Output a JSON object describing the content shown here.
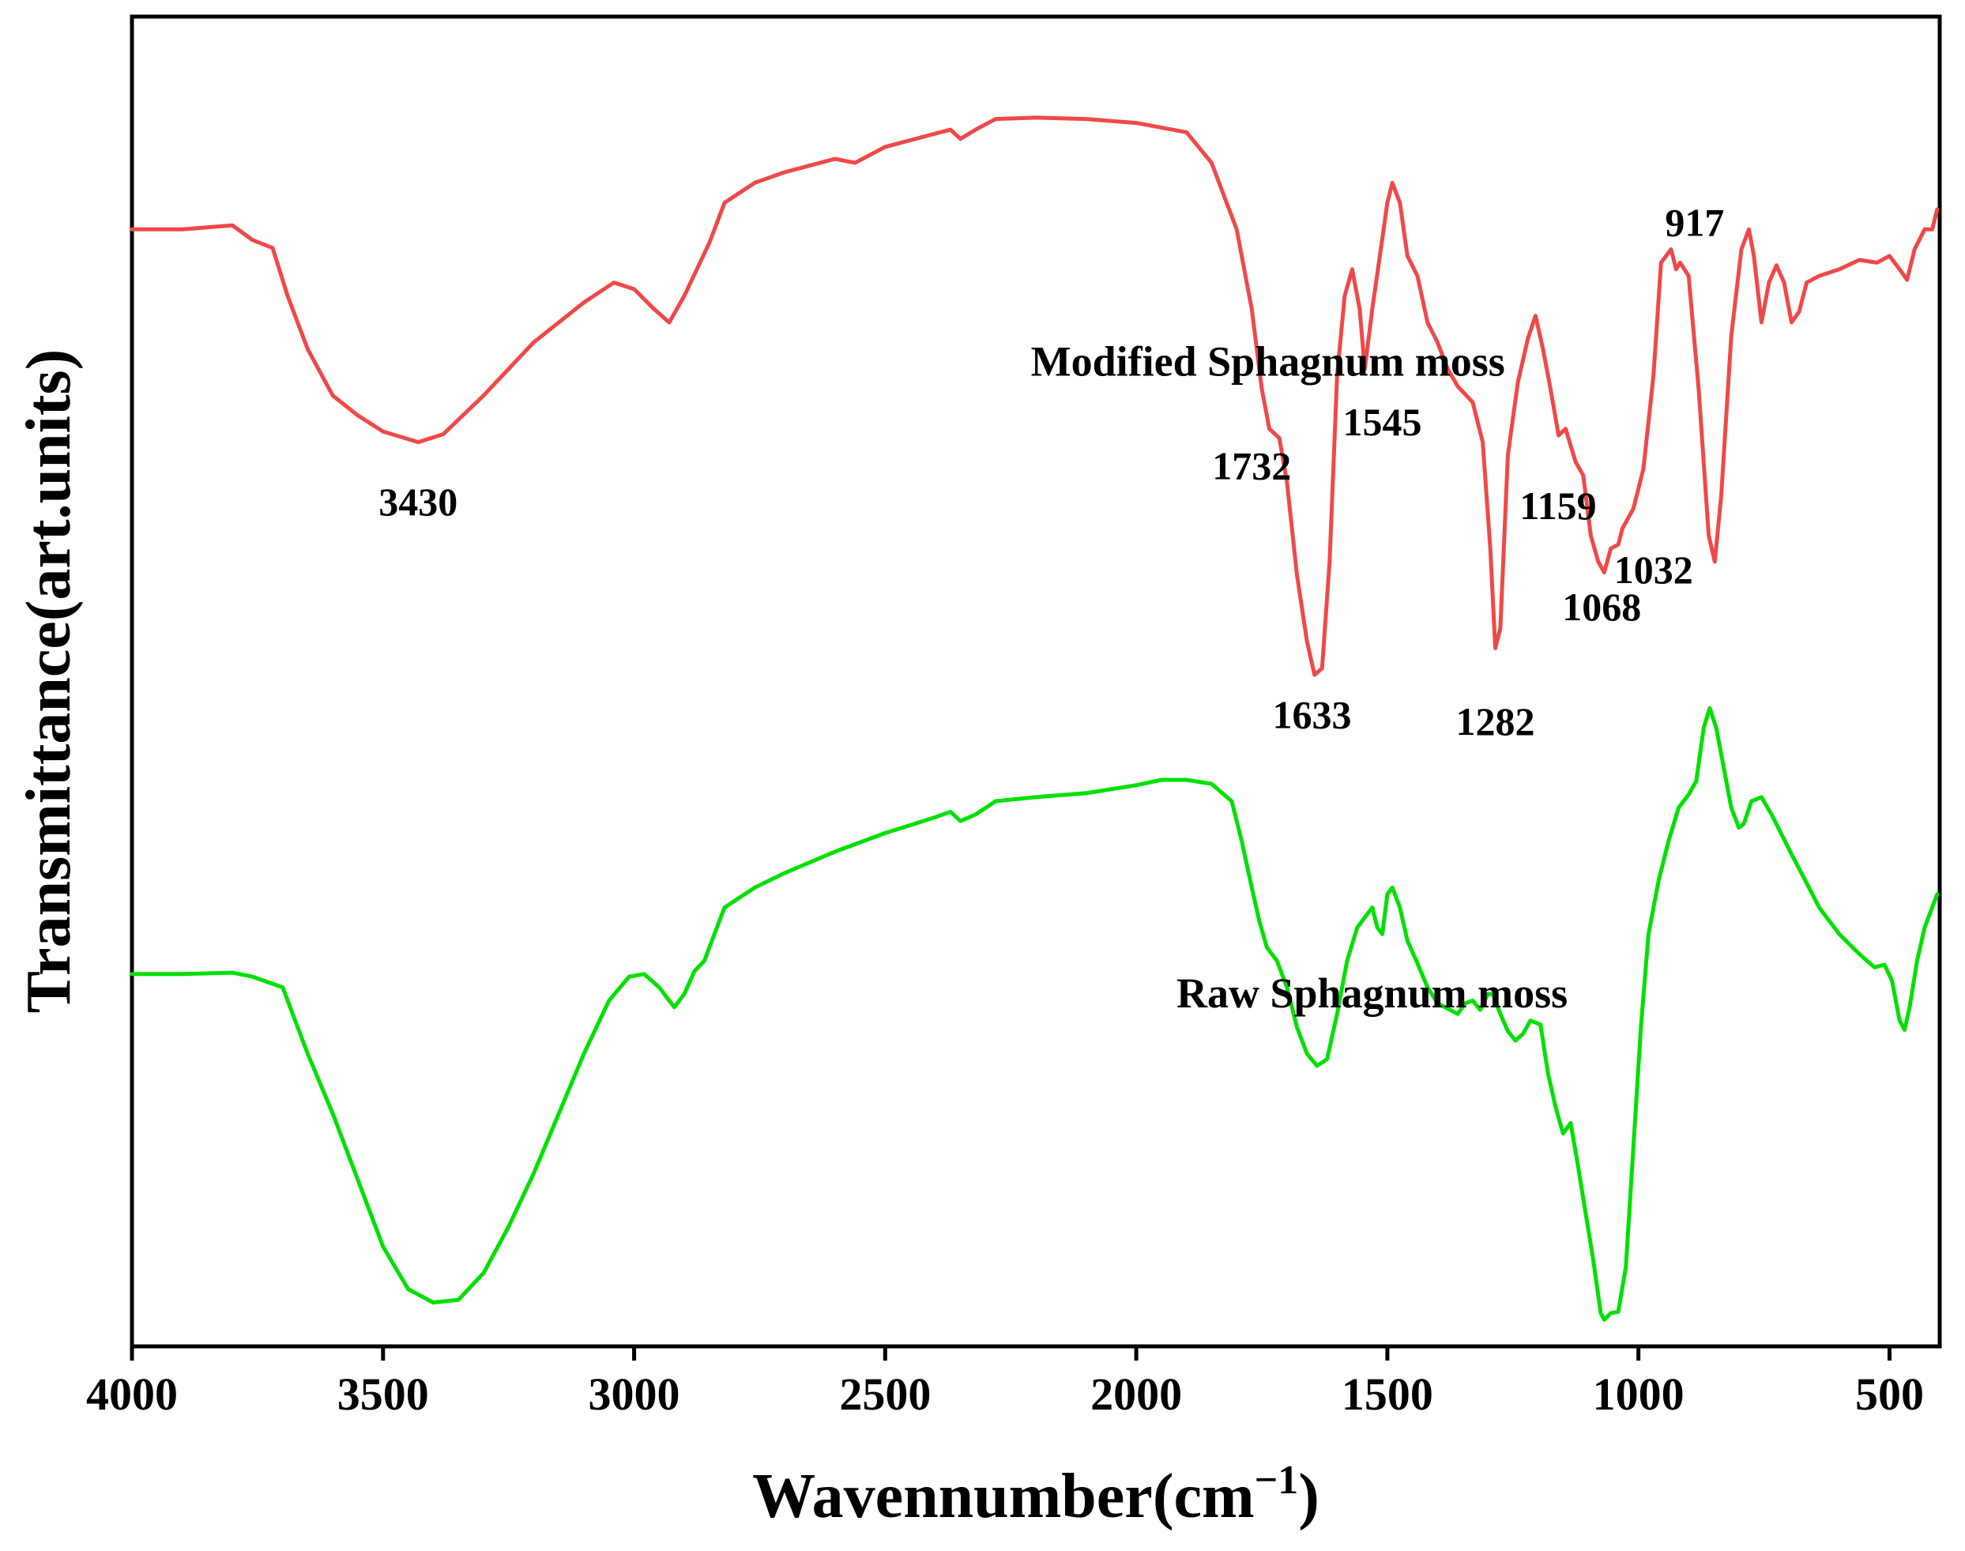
{
  "chart_data": {
    "type": "line",
    "xlabel": "Wavennumber(cm",
    "xlabel_sup": "−1",
    "xlabel_close": ")",
    "ylabel": "Transmittance(art.units)",
    "xlim": [
      4000,
      400
    ],
    "x_reversed": true,
    "x_ticks": [
      4000,
      3500,
      3000,
      2500,
      2000,
      1500,
      1000,
      500
    ],
    "y_ticks": [],
    "ylim": [
      0,
      100
    ],
    "grid": false,
    "legend": "none",
    "series": [
      {
        "name": "Modified Sphagnum moss",
        "color": "#f04848",
        "label_at": [
          2210,
          73
        ],
        "points": [
          [
            4000,
            84
          ],
          [
            3900,
            84
          ],
          [
            3800,
            84.3
          ],
          [
            3760,
            83.2
          ],
          [
            3720,
            82.6
          ],
          [
            3690,
            79
          ],
          [
            3650,
            75
          ],
          [
            3600,
            71.5
          ],
          [
            3550,
            70
          ],
          [
            3500,
            68.8
          ],
          [
            3430,
            68
          ],
          [
            3380,
            68.6
          ],
          [
            3300,
            71.5
          ],
          [
            3200,
            75.5
          ],
          [
            3100,
            78.5
          ],
          [
            3040,
            80
          ],
          [
            3000,
            79.5
          ],
          [
            2960,
            78
          ],
          [
            2930,
            77
          ],
          [
            2900,
            79
          ],
          [
            2850,
            83
          ],
          [
            2820,
            86
          ],
          [
            2760,
            87.5
          ],
          [
            2700,
            88.3
          ],
          [
            2600,
            89.3
          ],
          [
            2560,
            89
          ],
          [
            2500,
            90.2
          ],
          [
            2400,
            91.2
          ],
          [
            2370,
            91.5
          ],
          [
            2350,
            90.8
          ],
          [
            2320,
            91.5
          ],
          [
            2280,
            92.3
          ],
          [
            2200,
            92.4
          ],
          [
            2100,
            92.3
          ],
          [
            2000,
            92
          ],
          [
            1900,
            91.3
          ],
          [
            1850,
            89
          ],
          [
            1800,
            84
          ],
          [
            1770,
            78
          ],
          [
            1750,
            72
          ],
          [
            1735,
            69
          ],
          [
            1715,
            68.3
          ],
          [
            1700,
            65
          ],
          [
            1680,
            58
          ],
          [
            1660,
            53
          ],
          [
            1645,
            50.5
          ],
          [
            1630,
            51
          ],
          [
            1615,
            59
          ],
          [
            1600,
            73
          ],
          [
            1585,
            79
          ],
          [
            1570,
            81
          ],
          [
            1555,
            78
          ],
          [
            1545,
            73.5
          ],
          [
            1530,
            78
          ],
          [
            1515,
            82
          ],
          [
            1500,
            86
          ],
          [
            1490,
            87.5
          ],
          [
            1475,
            86
          ],
          [
            1460,
            82
          ],
          [
            1440,
            80.5
          ],
          [
            1420,
            77
          ],
          [
            1400,
            75.5
          ],
          [
            1380,
            73.5
          ],
          [
            1360,
            72.2
          ],
          [
            1330,
            71
          ],
          [
            1310,
            68
          ],
          [
            1295,
            60
          ],
          [
            1285,
            52.5
          ],
          [
            1275,
            54
          ],
          [
            1260,
            67
          ],
          [
            1240,
            72.5
          ],
          [
            1220,
            75.8
          ],
          [
            1205,
            77.5
          ],
          [
            1190,
            75
          ],
          [
            1175,
            72
          ],
          [
            1159,
            68.5
          ],
          [
            1145,
            69
          ],
          [
            1125,
            66.5
          ],
          [
            1110,
            65.5
          ],
          [
            1095,
            61
          ],
          [
            1080,
            59
          ],
          [
            1068,
            58.2
          ],
          [
            1055,
            60
          ],
          [
            1040,
            60.3
          ],
          [
            1032,
            61.5
          ],
          [
            1010,
            63
          ],
          [
            990,
            66
          ],
          [
            970,
            73
          ],
          [
            955,
            81.5
          ],
          [
            935,
            82.5
          ],
          [
            925,
            81
          ],
          [
            917,
            81.5
          ],
          [
            900,
            80.5
          ],
          [
            880,
            72
          ],
          [
            860,
            61
          ],
          [
            848,
            59
          ],
          [
            835,
            64
          ],
          [
            815,
            76
          ],
          [
            795,
            82.5
          ],
          [
            780,
            84
          ],
          [
            770,
            82
          ],
          [
            755,
            77
          ],
          [
            740,
            80
          ],
          [
            725,
            81.3
          ],
          [
            710,
            80
          ],
          [
            695,
            77
          ],
          [
            680,
            77.8
          ],
          [
            665,
            80
          ],
          [
            640,
            80.5
          ],
          [
            600,
            81
          ],
          [
            560,
            81.7
          ],
          [
            525,
            81.5
          ],
          [
            500,
            82
          ],
          [
            480,
            81
          ],
          [
            465,
            80.2
          ],
          [
            450,
            82.5
          ],
          [
            430,
            84
          ],
          [
            415,
            84
          ],
          [
            405,
            85.5
          ]
        ]
      },
      {
        "name": "Raw Sphagnum moss",
        "color": "#00e000",
        "label_at": [
          1920,
          25.5
        ],
        "points": [
          [
            4000,
            28
          ],
          [
            3900,
            28
          ],
          [
            3800,
            28.1
          ],
          [
            3760,
            27.8
          ],
          [
            3700,
            27
          ],
          [
            3650,
            22
          ],
          [
            3600,
            17.5
          ],
          [
            3550,
            12.5
          ],
          [
            3500,
            7.5
          ],
          [
            3450,
            4.3
          ],
          [
            3400,
            3.3
          ],
          [
            3350,
            3.5
          ],
          [
            3300,
            5.5
          ],
          [
            3250,
            9
          ],
          [
            3200,
            13
          ],
          [
            3150,
            17.5
          ],
          [
            3100,
            22
          ],
          [
            3050,
            26
          ],
          [
            3010,
            27.8
          ],
          [
            2980,
            28
          ],
          [
            2950,
            27
          ],
          [
            2920,
            25.5
          ],
          [
            2900,
            26.5
          ],
          [
            2880,
            28.2
          ],
          [
            2860,
            29
          ],
          [
            2840,
            31
          ],
          [
            2820,
            33
          ],
          [
            2760,
            34.5
          ],
          [
            2700,
            35.6
          ],
          [
            2600,
            37.2
          ],
          [
            2500,
            38.6
          ],
          [
            2400,
            39.8
          ],
          [
            2370,
            40.2
          ],
          [
            2350,
            39.5
          ],
          [
            2320,
            40
          ],
          [
            2280,
            41
          ],
          [
            2200,
            41.3
          ],
          [
            2100,
            41.6
          ],
          [
            2000,
            42.2
          ],
          [
            1950,
            42.6
          ],
          [
            1900,
            42.6
          ],
          [
            1850,
            42.3
          ],
          [
            1810,
            41
          ],
          [
            1790,
            38
          ],
          [
            1770,
            34.5
          ],
          [
            1755,
            32
          ],
          [
            1740,
            30
          ],
          [
            1720,
            29
          ],
          [
            1700,
            27
          ],
          [
            1680,
            24
          ],
          [
            1660,
            22
          ],
          [
            1640,
            21.1
          ],
          [
            1620,
            21.6
          ],
          [
            1600,
            25
          ],
          [
            1580,
            29
          ],
          [
            1560,
            31.5
          ],
          [
            1540,
            32.5
          ],
          [
            1530,
            33
          ],
          [
            1520,
            31.5
          ],
          [
            1510,
            31
          ],
          [
            1500,
            34
          ],
          [
            1490,
            34.5
          ],
          [
            1475,
            33
          ],
          [
            1460,
            30.5
          ],
          [
            1440,
            28.8
          ],
          [
            1420,
            27
          ],
          [
            1400,
            25.8
          ],
          [
            1380,
            25.4
          ],
          [
            1360,
            25
          ],
          [
            1345,
            25.8
          ],
          [
            1330,
            26
          ],
          [
            1315,
            25.3
          ],
          [
            1300,
            26.5
          ],
          [
            1290,
            26.5
          ],
          [
            1275,
            25
          ],
          [
            1260,
            23.7
          ],
          [
            1245,
            23
          ],
          [
            1230,
            23.5
          ],
          [
            1215,
            24.5
          ],
          [
            1195,
            24.2
          ],
          [
            1180,
            20.5
          ],
          [
            1165,
            18
          ],
          [
            1150,
            16
          ],
          [
            1135,
            16.8
          ],
          [
            1120,
            13.5
          ],
          [
            1105,
            10
          ],
          [
            1090,
            6.5
          ],
          [
            1075,
            2.5
          ],
          [
            1068,
            2
          ],
          [
            1055,
            2.5
          ],
          [
            1040,
            2.6
          ],
          [
            1025,
            6
          ],
          [
            1010,
            15
          ],
          [
            995,
            24
          ],
          [
            980,
            31
          ],
          [
            960,
            35
          ],
          [
            940,
            38
          ],
          [
            920,
            40.5
          ],
          [
            900,
            41.5
          ],
          [
            885,
            42.5
          ],
          [
            870,
            46.5
          ],
          [
            858,
            48
          ],
          [
            845,
            46.5
          ],
          [
            830,
            43.5
          ],
          [
            815,
            40.5
          ],
          [
            800,
            39
          ],
          [
            790,
            39.3
          ],
          [
            775,
            41
          ],
          [
            755,
            41.3
          ],
          [
            735,
            40
          ],
          [
            715,
            38.5
          ],
          [
            695,
            37
          ],
          [
            670,
            35.2
          ],
          [
            640,
            33
          ],
          [
            600,
            31
          ],
          [
            560,
            29.5
          ],
          [
            530,
            28.5
          ],
          [
            510,
            28.7
          ],
          [
            495,
            27.5
          ],
          [
            480,
            24.5
          ],
          [
            470,
            23.8
          ],
          [
            460,
            25.5
          ],
          [
            445,
            29
          ],
          [
            430,
            31.5
          ],
          [
            410,
            33.5
          ],
          [
            405,
            34
          ]
        ]
      }
    ],
    "annotations": [
      {
        "text": "3430",
        "x": 3430,
        "y": 62.5
      },
      {
        "text": "1732",
        "x": 1770,
        "y": 65.2
      },
      {
        "text": "1545",
        "x": 1510,
        "y": 68.5
      },
      {
        "text": "1159",
        "x": 1160,
        "y": 62.2
      },
      {
        "text": "1633",
        "x": 1650,
        "y": 46.5
      },
      {
        "text": "1282",
        "x": 1285,
        "y": 46
      },
      {
        "text": "1068",
        "x": 1073,
        "y": 54.6
      },
      {
        "text": "1032",
        "x": 970,
        "y": 57.4
      },
      {
        "text": "917",
        "x": 888,
        "y": 83.5
      }
    ]
  }
}
